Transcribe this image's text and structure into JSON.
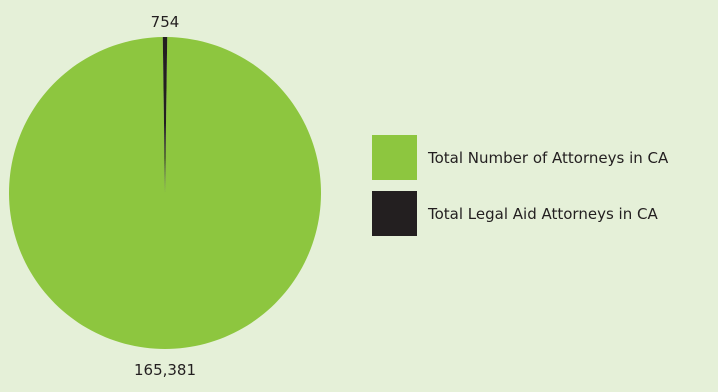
{
  "chart_data": {
    "type": "pie",
    "slices": [
      {
        "name": "Total Number of Attorneys in CA",
        "value": 165381,
        "label": "165,381",
        "color": "#8dc63f"
      },
      {
        "name": "Total Legal Aid Attorneys in CA",
        "value": 754,
        "label": "754",
        "color": "#231f20"
      }
    ],
    "legend_position": "right"
  }
}
